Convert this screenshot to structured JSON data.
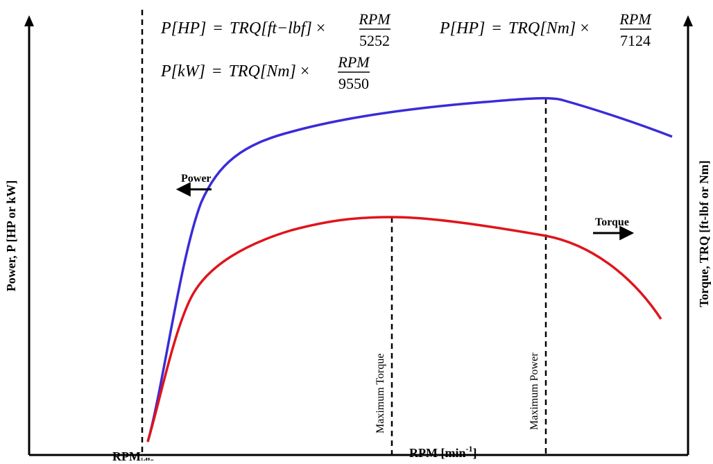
{
  "diagram": {
    "formulas": [
      {
        "lhs": "P[HP]",
        "rhs": "TRQ[ft−lbf]",
        "times": "×",
        "numerator": "RPM",
        "denominator": "5252"
      },
      {
        "lhs": "P[HP]",
        "rhs": "TRQ[Nm]",
        "times": "×",
        "numerator": "RPM",
        "denominator": "7124"
      },
      {
        "lhs": "P[kW]",
        "rhs": "TRQ[Nm]",
        "times": "×",
        "numerator": "RPM",
        "denominator": "9550"
      }
    ],
    "equals": "=",
    "labels": {
      "power_curve": "Power",
      "torque_curve": "Torque",
      "max_torque": "Maximum Torque",
      "max_power": "Maximum Power",
      "rpm_idle_main": "RPM",
      "rpm_idle_sub": "idle",
      "x_axis_main": "RPM [min",
      "x_axis_sup": "-1",
      "x_axis_close": "]",
      "left_axis": "Power, P [HP or kW]",
      "right_axis": "Torque, TRQ [ft-lbf or Nm]"
    },
    "colors": {
      "power": "#3a2bd9",
      "torque": "#e0141b",
      "axes": "#000000"
    }
  }
}
